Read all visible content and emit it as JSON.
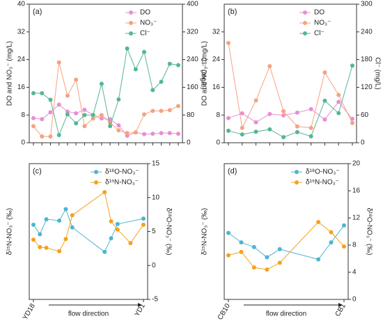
{
  "chart_data": [
    {
      "type": "line",
      "title": "(a)",
      "ylabel": "DO and NO₃⁻ (mg/L)",
      "y2label": "Cl⁻ (mg/L)",
      "categories": [
        null,
        null,
        null,
        null,
        null,
        null,
        null,
        null,
        null,
        null,
        null,
        null,
        null,
        null,
        null,
        null,
        null,
        null
      ],
      "ylim": [
        0,
        40
      ],
      "yticks": [
        0,
        8,
        16,
        24,
        32,
        40
      ],
      "y2lim": [
        0,
        400
      ],
      "y2ticks": [
        0,
        80,
        160,
        240,
        320,
        400
      ],
      "legend": "upper right",
      "series": [
        {
          "name": "DO",
          "color": "#e78fd3",
          "values": [
            7.1,
            6.8,
            8.8,
            11.0,
            9.0,
            8.5,
            9.5,
            8.0,
            7.0,
            6.8,
            5.0,
            2.0,
            3.0,
            2.5,
            2.6,
            2.8,
            2.8,
            2.6
          ]
        },
        {
          "name": "NO₃⁻",
          "color": "#f6a27f",
          "values": [
            4.8,
            1.8,
            1.8,
            23.2,
            13.6,
            18.2,
            4.8,
            7.0,
            8.0,
            5.8,
            3.6,
            2.8,
            3.0,
            8.2,
            9.2,
            9.2,
            9.4,
            10.6
          ]
        },
        {
          "name": "Cl⁻",
          "color": "#55b597",
          "axis": "y2",
          "values": [
            143,
            143,
            124,
            22,
            82,
            56,
            80,
            80,
            170,
            48,
            125,
            272,
            212,
            262,
            152,
            176,
            228,
            224
          ]
        }
      ]
    },
    {
      "type": "line",
      "title": "(b)",
      "ylabel": "DO and NO₃⁻ (mg/L)",
      "y2label": "Cl⁻ (mg/L)",
      "categories": [
        null,
        null,
        null,
        null,
        null,
        null,
        null,
        null,
        null,
        null
      ],
      "ylim": [
        0,
        40
      ],
      "yticks": [
        0,
        8,
        16,
        24,
        32
      ],
      "y2lim": [
        0,
        300
      ],
      "y2ticks": [
        0,
        60,
        120,
        180,
        240,
        300
      ],
      "legend": "upper right",
      "series": [
        {
          "name": "DO",
          "color": "#e78fd3",
          "values": [
            7.1,
            8.5,
            5.9,
            8.3,
            7.9,
            8.7,
            9.7,
            6.7,
            11.8,
            6.9
          ]
        },
        {
          "name": "NO₃⁻",
          "color": "#f6a27f",
          "values": [
            28.8,
            4.3,
            12.2,
            22.1,
            9.1,
            4.7,
            4.3,
            20.3,
            13.8,
            5.7
          ]
        },
        {
          "name": "Cl⁻",
          "color": "#55b597",
          "axis": "y2",
          "values": [
            26,
            18,
            24,
            29,
            12,
            23,
            14,
            91,
            64,
            167
          ]
        }
      ]
    },
    {
      "type": "line",
      "title": "(c)",
      "ylabel": "δ¹⁵N-NO₃⁻ (‰)",
      "y2label": "δ¹⁸O-NO₃⁻ (‰)",
      "xlabel": "flow direction",
      "xlim": [
        0,
        17
      ],
      "xticks": [
        {
          "value": 0,
          "label": "YD18"
        },
        {
          "value": 17,
          "label": "YD1"
        }
      ],
      "ylim": [
        0,
        20
      ],
      "y2lim": [
        -5,
        15
      ],
      "y2ticks": [
        -5,
        0,
        5,
        10,
        15
      ],
      "legend": "upper right",
      "series": [
        {
          "name": "δ¹⁸O-NO₃⁻",
          "color": "#4db5d0",
          "axis": "y2",
          "x": [
            0,
            1,
            2,
            4,
            5,
            6,
            11,
            12,
            13,
            17
          ],
          "values": [
            6.0,
            4.6,
            6.8,
            6.6,
            8.3,
            5.6,
            2.0,
            4.0,
            6.1,
            6.9
          ]
        },
        {
          "name": "δ¹⁵N-NO₃⁻",
          "color": "#f5a11f",
          "x": [
            0,
            1,
            2,
            4,
            5,
            6,
            11,
            12,
            13,
            15,
            17
          ],
          "values": [
            8.8,
            7.7,
            7.6,
            7.1,
            8.9,
            12.4,
            15.8,
            11.5,
            10.3,
            8.3,
            11.0
          ]
        }
      ]
    },
    {
      "type": "line",
      "title": "(d)",
      "ylabel": "δ¹⁵N-NO₃⁻ (‰)",
      "y2label": "δ¹⁸O-NO₃⁻ (‰)",
      "xlabel": "flow direction",
      "xlim": [
        0,
        9
      ],
      "xticks": [
        {
          "value": 0,
          "label": "CB10"
        },
        {
          "value": 9,
          "label": "CB1"
        }
      ],
      "ylim": [
        0,
        20
      ],
      "y2lim": [
        0,
        20
      ],
      "y2ticks": [
        0,
        4,
        8,
        12,
        16,
        20
      ],
      "legend": "upper right",
      "series": [
        {
          "name": "δ¹⁸O-NO₃⁻",
          "color": "#4db5d0",
          "axis": "y2",
          "x": [
            0,
            1,
            2,
            3,
            4,
            7,
            8,
            9
          ],
          "values": [
            9.8,
            8.4,
            7.7,
            6.2,
            7.4,
            5.9,
            8.4,
            10.9
          ]
        },
        {
          "name": "δ¹⁵N-NO₃⁻",
          "color": "#f5a11f",
          "x": [
            0,
            1,
            2,
            3,
            4,
            7,
            8,
            9
          ],
          "values": [
            6.5,
            7.0,
            4.7,
            4.4,
            5.4,
            11.4,
            9.9,
            7.8
          ]
        }
      ]
    }
  ]
}
